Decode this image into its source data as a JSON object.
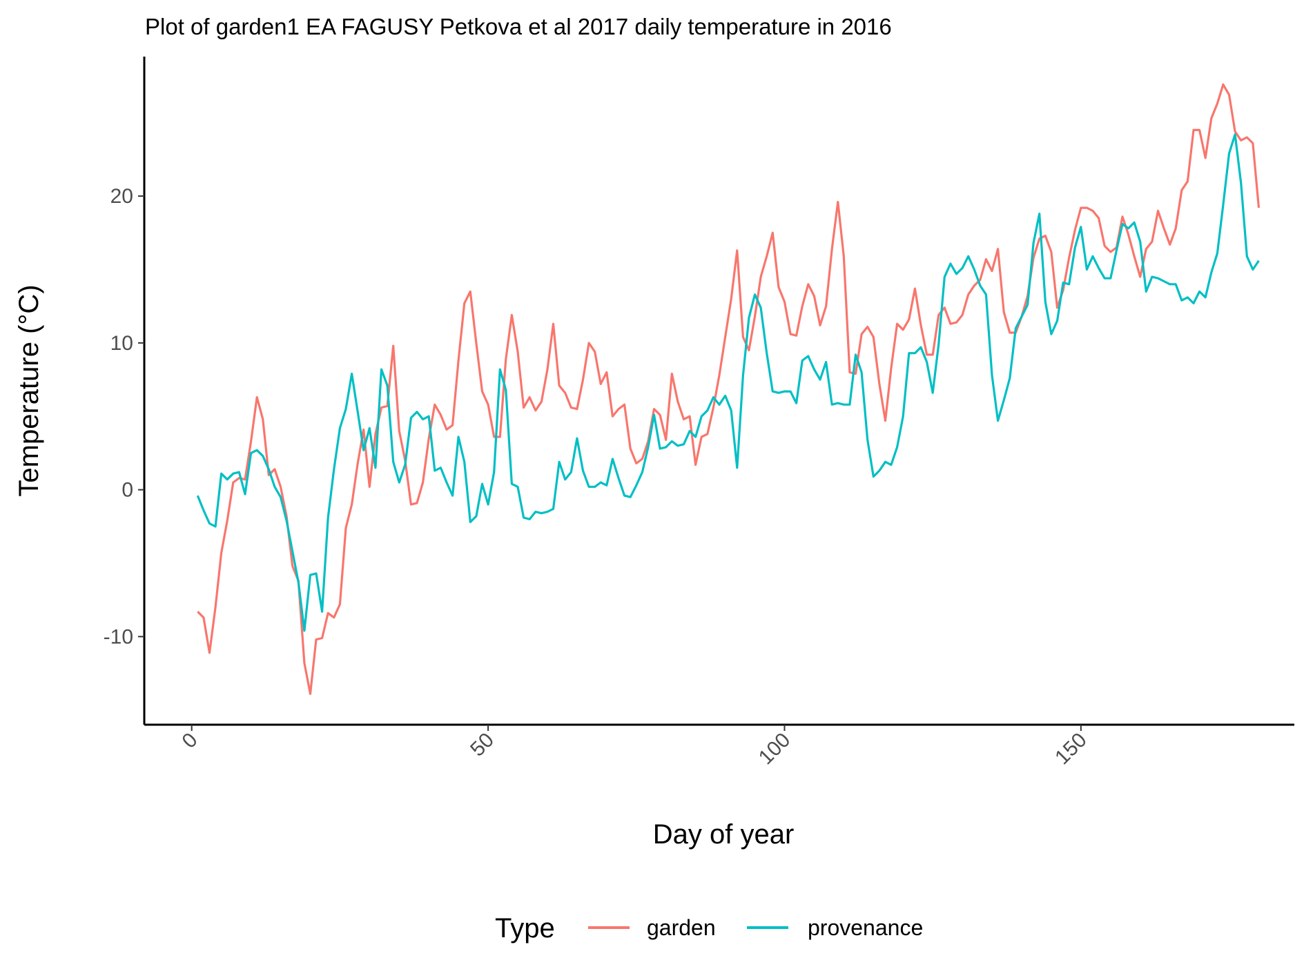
{
  "chart_data": {
    "type": "line",
    "title": "Plot of garden1 EA FAGUSY Petkova et al 2017 daily temperature in 2016",
    "xlabel": "Day of year",
    "ylabel": "Temperature (°C)",
    "xlim": [
      -8,
      186
    ],
    "ylim": [
      -16,
      29.5
    ],
    "xticks": [
      0,
      50,
      100,
      150
    ],
    "yticks": [
      -10,
      0,
      10,
      20
    ],
    "grid": false,
    "legend": {
      "title": "Type",
      "position": "bottom"
    },
    "series": [
      {
        "name": "garden",
        "color": "#F8766D",
        "x": [
          1,
          2,
          3,
          4,
          5,
          6,
          7,
          8,
          9,
          10,
          11,
          12,
          13,
          14,
          15,
          16,
          17,
          18,
          19,
          20,
          21,
          22,
          23,
          24,
          25,
          26,
          27,
          28,
          29,
          30,
          31,
          32,
          33,
          34,
          35,
          36,
          37,
          38,
          39,
          40,
          41,
          42,
          43,
          44,
          45,
          46,
          47,
          48,
          49,
          50,
          51,
          52,
          53,
          54,
          55,
          56,
          57,
          58,
          59,
          60,
          61,
          62,
          63,
          64,
          65,
          66,
          67,
          68,
          69,
          70,
          71,
          72,
          73,
          74,
          75,
          76,
          77,
          78,
          79,
          80,
          81,
          82,
          83,
          84,
          85,
          86,
          87,
          88,
          89,
          90,
          91,
          92,
          93,
          94,
          95,
          96,
          97,
          98,
          99,
          100,
          101,
          102,
          103,
          104,
          105,
          106,
          107,
          108,
          109,
          110,
          111,
          112,
          113,
          114,
          115,
          116,
          117,
          118,
          119,
          120,
          121,
          122,
          123,
          124,
          125,
          126,
          127,
          128,
          129,
          130,
          131,
          132,
          133,
          134,
          135,
          136,
          137,
          138,
          139,
          140,
          141,
          142,
          143,
          144,
          145,
          146,
          147,
          148,
          149,
          150,
          151,
          152,
          153,
          154,
          155,
          156,
          157,
          158,
          159,
          160,
          161,
          162,
          163,
          164,
          165,
          166,
          167,
          168,
          169,
          170,
          171,
          172,
          173,
          174,
          175,
          176,
          177,
          178,
          179,
          180
        ],
        "values": [
          -8.3,
          -8.7,
          -11.1,
          -8.0,
          -4.3,
          -2.1,
          0.5,
          0.8,
          0.7,
          3.3,
          6.3,
          4.8,
          1.0,
          1.4,
          0.2,
          -1.8,
          -5.2,
          -6.2,
          -11.8,
          -13.9,
          -10.2,
          -10.1,
          -8.4,
          -8.7,
          -7.8,
          -2.6,
          -1.0,
          1.8,
          4.1,
          0.2,
          3.8,
          5.6,
          5.7,
          9.8,
          4.0,
          2.0,
          -1.0,
          -0.9,
          0.5,
          3.5,
          5.8,
          5.1,
          4.1,
          4.4,
          8.8,
          12.7,
          13.5,
          10.0,
          6.7,
          5.8,
          3.6,
          3.6,
          8.9,
          11.9,
          9.4,
          5.6,
          6.3,
          5.4,
          6.0,
          8.2,
          11.3,
          7.1,
          6.6,
          5.6,
          5.5,
          7.5,
          10.0,
          9.4,
          7.2,
          8.0,
          5.0,
          5.5,
          5.8,
          2.8,
          1.8,
          2.1,
          3.3,
          5.5,
          5.1,
          3.4,
          7.9,
          6.0,
          4.8,
          5.0,
          1.7,
          3.6,
          3.8,
          5.6,
          7.8,
          10.4,
          13.0,
          16.3,
          10.4,
          9.5,
          11.8,
          14.5,
          15.9,
          17.5,
          13.8,
          12.8,
          10.6,
          10.5,
          12.5,
          14.0,
          13.2,
          11.2,
          12.5,
          16.4,
          19.6,
          15.9,
          8.0,
          7.9,
          10.6,
          11.1,
          10.4,
          7.2,
          4.7,
          8.3,
          11.3,
          10.9,
          11.6,
          13.7,
          11.2,
          9.2,
          9.2,
          11.9,
          12.4,
          11.3,
          11.4,
          11.9,
          13.3,
          13.9,
          14.3,
          15.7,
          14.9,
          16.4,
          12.1,
          10.7,
          10.7,
          11.8,
          13.2,
          15.8,
          17.1,
          17.3,
          16.2,
          12.4,
          13.6,
          15.8,
          17.7,
          19.2,
          19.2,
          19.0,
          18.5,
          16.6,
          16.2,
          16.5,
          18.6,
          17.4,
          15.9,
          14.5,
          16.4,
          16.9,
          19.0,
          17.8,
          16.7,
          17.8,
          20.4,
          21.0,
          24.5,
          24.5,
          22.6,
          25.3,
          26.3,
          27.6,
          26.9,
          24.4,
          23.8,
          24.0,
          23.6,
          19.2
        ]
      },
      {
        "name": "provenance",
        "color": "#00BFC4",
        "x": [
          1,
          2,
          3,
          4,
          5,
          6,
          7,
          8,
          9,
          10,
          11,
          12,
          13,
          14,
          15,
          16,
          17,
          18,
          19,
          20,
          21,
          22,
          23,
          24,
          25,
          26,
          27,
          28,
          29,
          30,
          31,
          32,
          33,
          34,
          35,
          36,
          37,
          38,
          39,
          40,
          41,
          42,
          43,
          44,
          45,
          46,
          47,
          48,
          49,
          50,
          51,
          52,
          53,
          54,
          55,
          56,
          57,
          58,
          59,
          60,
          61,
          62,
          63,
          64,
          65,
          66,
          67,
          68,
          69,
          70,
          71,
          72,
          73,
          74,
          75,
          76,
          77,
          78,
          79,
          80,
          81,
          82,
          83,
          84,
          85,
          86,
          87,
          88,
          89,
          90,
          91,
          92,
          93,
          94,
          95,
          96,
          97,
          98,
          99,
          100,
          101,
          102,
          103,
          104,
          105,
          106,
          107,
          108,
          109,
          110,
          111,
          112,
          113,
          114,
          115,
          116,
          117,
          118,
          119,
          120,
          121,
          122,
          123,
          124,
          125,
          126,
          127,
          128,
          129,
          130,
          131,
          132,
          133,
          134,
          135,
          136,
          137,
          138,
          139,
          140,
          141,
          142,
          143,
          144,
          145,
          146,
          147,
          148,
          149,
          150,
          151,
          152,
          153,
          154,
          155,
          156,
          157,
          158,
          159,
          160,
          161,
          162,
          163,
          164,
          165,
          166,
          167,
          168,
          169,
          170,
          171,
          172,
          173,
          174,
          175,
          176,
          177,
          178,
          179,
          180
        ],
        "values": [
          -0.4,
          -1.4,
          -2.3,
          -2.5,
          1.1,
          0.7,
          1.1,
          1.2,
          -0.3,
          2.5,
          2.7,
          2.3,
          1.4,
          0.2,
          -0.5,
          -2.1,
          -4.2,
          -6.3,
          -9.6,
          -5.8,
          -5.7,
          -8.3,
          -1.9,
          1.4,
          4.2,
          5.5,
          7.9,
          5.3,
          2.7,
          4.2,
          1.5,
          8.2,
          7.1,
          1.9,
          0.5,
          1.7,
          4.9,
          5.3,
          4.8,
          5.0,
          1.3,
          1.5,
          0.5,
          -0.4,
          3.6,
          1.9,
          -2.2,
          -1.8,
          0.4,
          -1.0,
          1.2,
          8.2,
          6.8,
          0.4,
          0.2,
          -1.9,
          -2.0,
          -1.5,
          -1.6,
          -1.5,
          -1.3,
          1.9,
          0.7,
          1.2,
          3.5,
          1.3,
          0.2,
          0.2,
          0.5,
          0.3,
          2.1,
          0.8,
          -0.4,
          -0.5,
          0.3,
          1.2,
          2.9,
          5.1,
          2.8,
          2.9,
          3.3,
          3.0,
          3.1,
          4.0,
          3.6,
          5.0,
          5.4,
          6.3,
          5.8,
          6.4,
          5.4,
          1.5,
          7.8,
          11.7,
          13.3,
          12.4,
          9.3,
          6.7,
          6.6,
          6.7,
          6.7,
          5.9,
          8.8,
          9.1,
          8.2,
          7.5,
          8.7,
          5.8,
          5.9,
          5.8,
          5.8,
          9.2,
          8.0,
          3.4,
          0.9,
          1.3,
          1.9,
          1.7,
          2.9,
          5.0,
          9.3,
          9.3,
          9.7,
          8.7,
          6.6,
          9.9,
          14.5,
          15.4,
          14.7,
          15.1,
          15.9,
          15.0,
          13.9,
          13.3,
          7.8,
          4.7,
          6.1,
          7.6,
          11.0,
          11.8,
          12.6,
          16.8,
          18.8,
          12.8,
          10.6,
          11.5,
          14.1,
          14.0,
          16.5,
          17.9,
          15.0,
          15.9,
          15.1,
          14.4,
          14.4,
          16.3,
          18.1,
          17.8,
          18.2,
          16.9,
          13.5,
          14.5,
          14.4,
          14.2,
          14.0,
          14.0,
          12.9,
          13.1,
          12.7,
          13.5,
          13.1,
          14.8,
          16.1,
          19.4,
          22.9,
          24.2,
          20.9,
          15.9,
          15.0,
          15.6
        ]
      }
    ]
  }
}
